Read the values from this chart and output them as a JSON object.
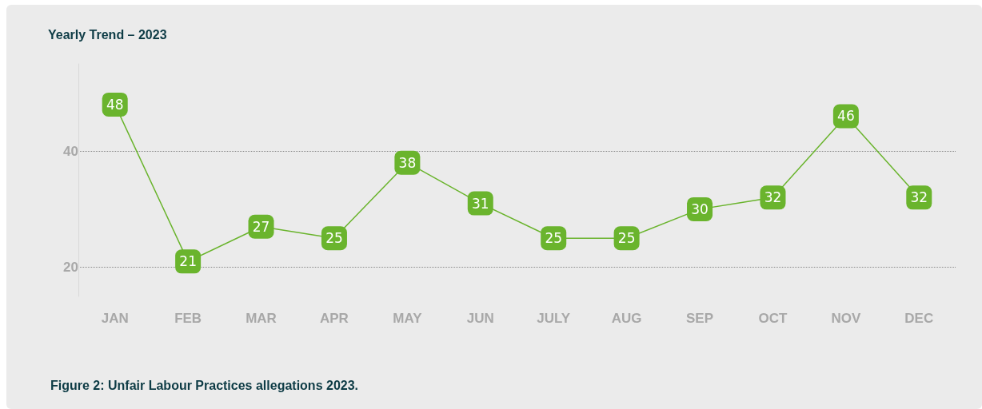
{
  "chart_data": {
    "type": "line",
    "title": "Yearly Trend – 2023",
    "categories": [
      "JAN",
      "FEB",
      "MAR",
      "APR",
      "MAY",
      "JUN",
      "JULY",
      "AUG",
      "SEP",
      "OCT",
      "NOV",
      "DEC"
    ],
    "series": [
      {
        "color": "#6ab42d",
        "values": [
          48,
          21,
          27,
          25,
          38,
          31,
          25,
          25,
          30,
          32,
          46,
          32
        ]
      }
    ],
    "ylim": [
      15,
      55
    ],
    "yticks": [
      20,
      40
    ],
    "grid": "y",
    "marker": "square",
    "line_style": "solid",
    "data_labels": true,
    "annotations": [
      "Figure 2: Unfair Labour Practices allegations 2023."
    ]
  }
}
